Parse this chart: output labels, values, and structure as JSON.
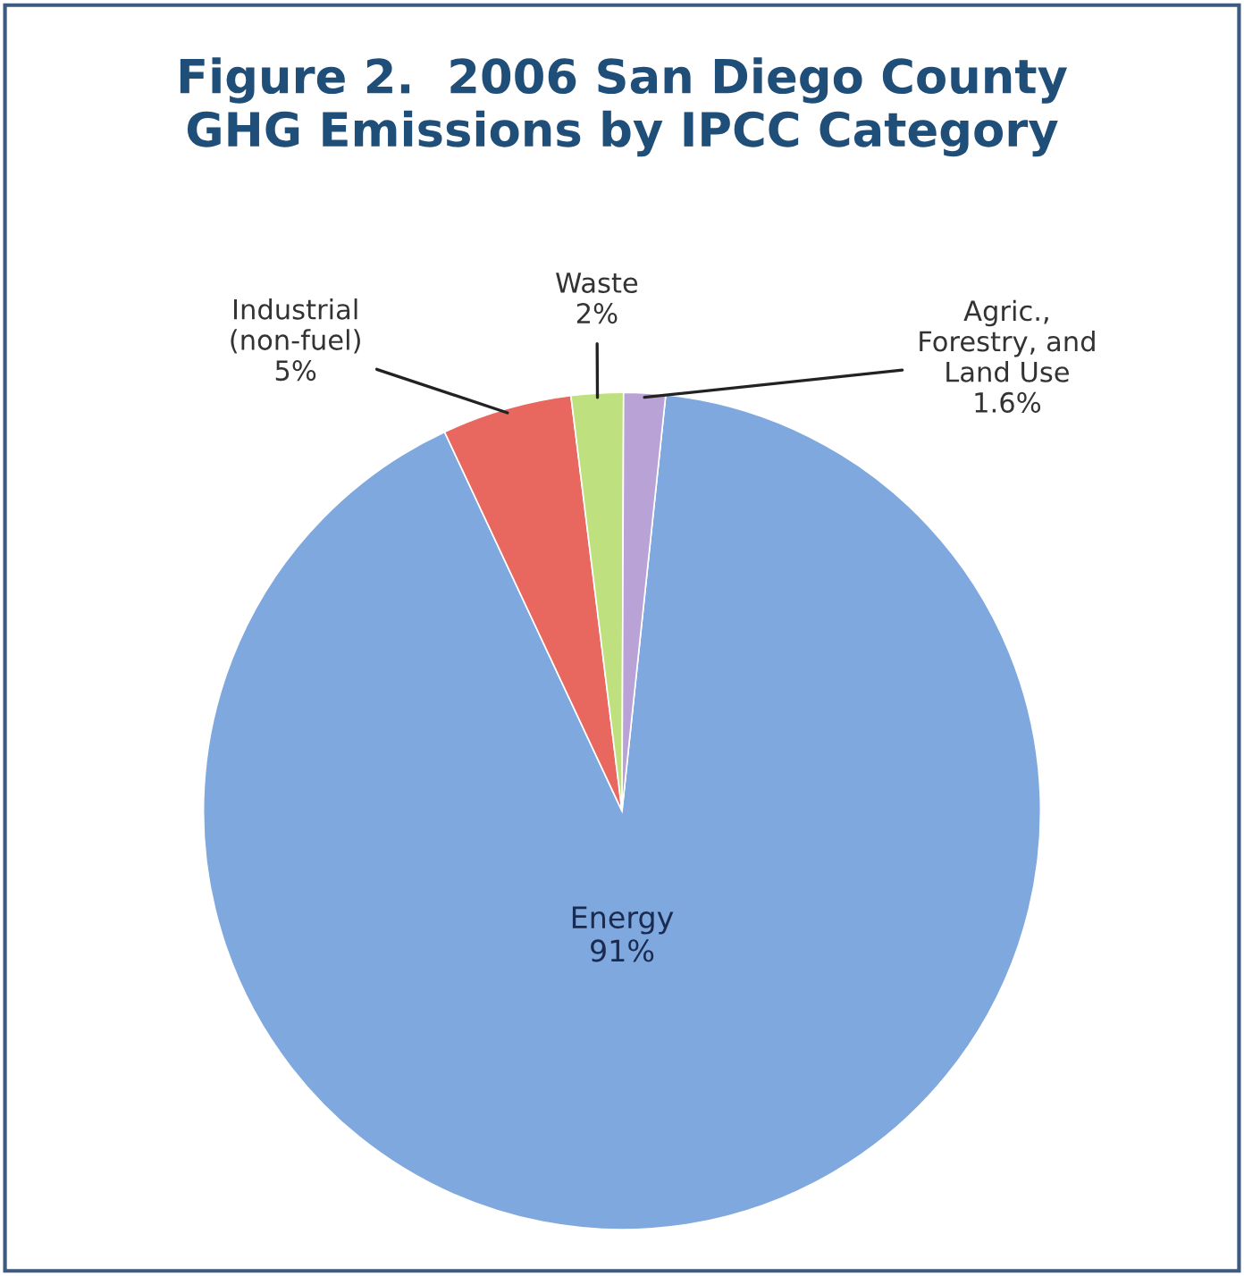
{
  "chart_data": {
    "type": "pie",
    "title": "Figure 2.  2006 San Diego County\nGHG Emissions by IPCC Category",
    "categories": [
      "Energy",
      "Industrial\n(non-fuel)",
      "Waste",
      "Agric.,\nForestry, and\nLand Use"
    ],
    "values": [
      91,
      5,
      2,
      1.6
    ],
    "value_labels": [
      "91%",
      "5%",
      "2%",
      "1.6%"
    ],
    "colors": [
      "#7fa8de",
      "#e8675e",
      "#bfe07e",
      "#b9a2d6"
    ]
  }
}
